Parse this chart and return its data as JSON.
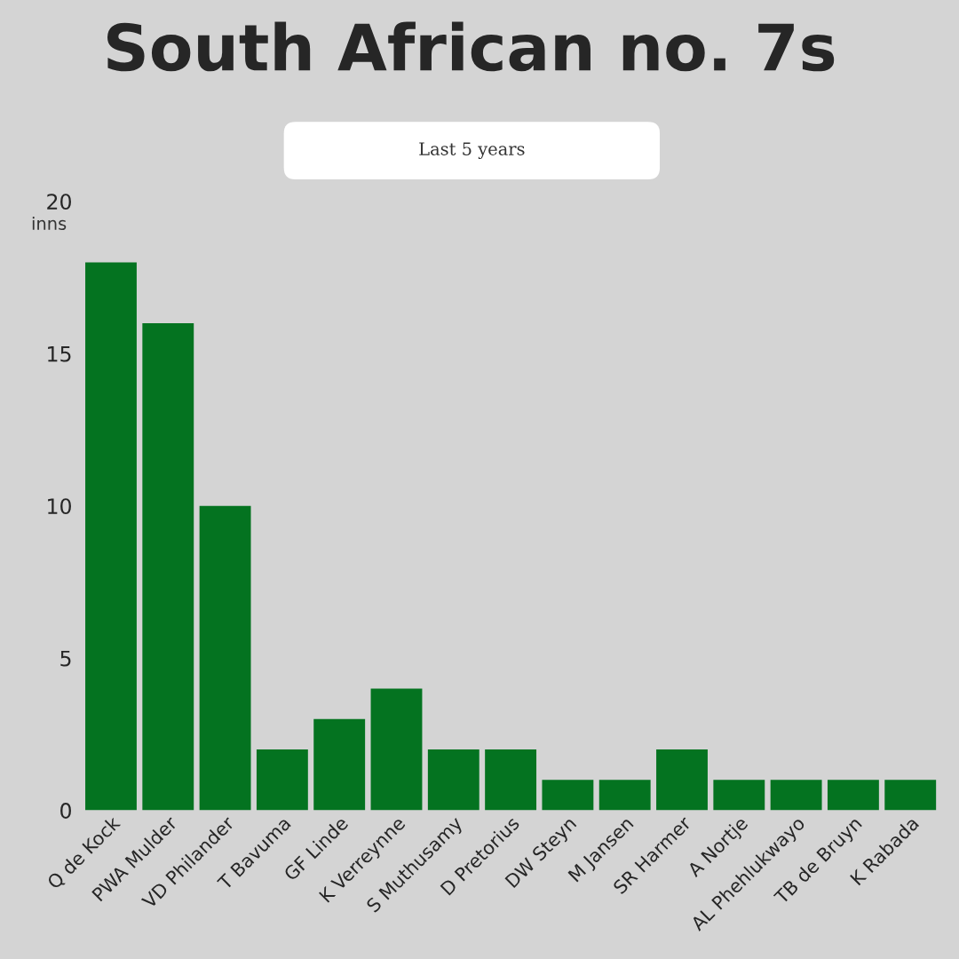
{
  "chart_data": {
    "type": "bar",
    "title": "South African no. 7s",
    "subtitle": "Last 5 years",
    "ylabel": "inns",
    "categories": [
      "Q de Kock",
      "PWA Mulder",
      "VD Philander",
      "T Bavuma",
      "GF Linde",
      "K Verreynne",
      "S Muthusamy",
      "D Pretorius",
      "DW Steyn",
      "M Jansen",
      "SR Harmer",
      "A Nortje",
      "AL Phehlukwayo",
      "TB de Bruyn",
      "K Rabada"
    ],
    "values": [
      18,
      16,
      10,
      2,
      3,
      4,
      2,
      2,
      1,
      1,
      2,
      1,
      1,
      1,
      1
    ],
    "color": "#047320",
    "ylim": [
      0,
      20
    ],
    "yticks": [
      0,
      5,
      10,
      15,
      20
    ],
    "grid": false
  }
}
